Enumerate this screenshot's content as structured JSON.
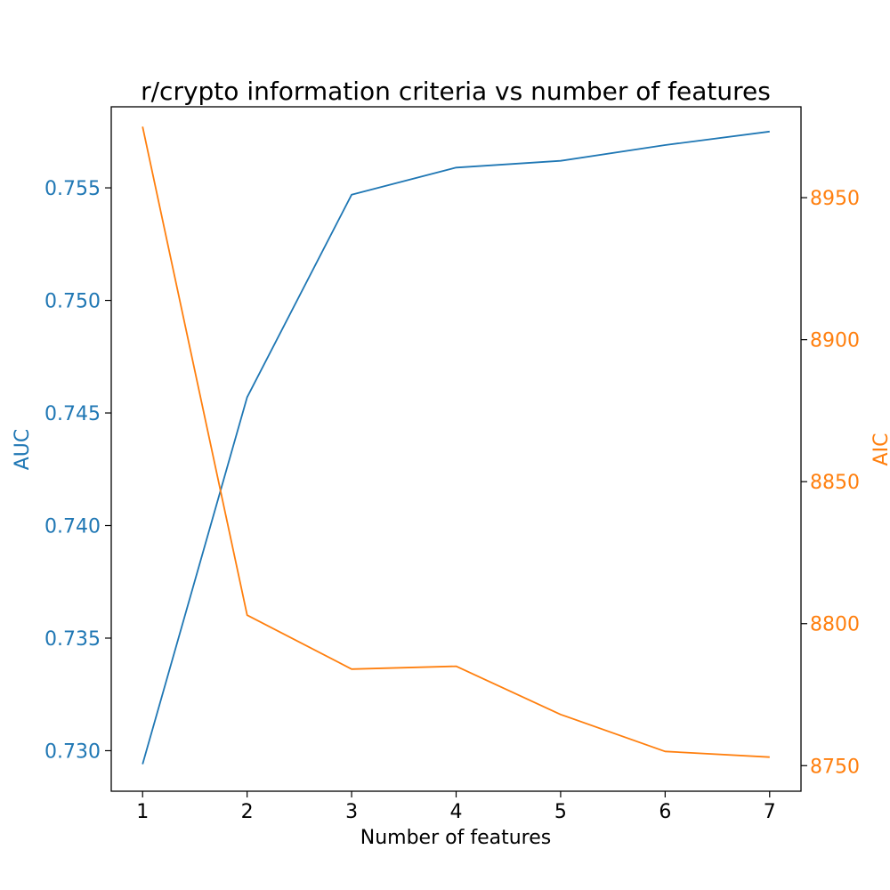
{
  "chart_data": {
    "type": "line",
    "title": "r/crypto information criteria vs number of features",
    "xlabel": "Number of features",
    "y1label": "AUC",
    "y2label": "AIC",
    "x": [
      1,
      2,
      3,
      4,
      5,
      6,
      7
    ],
    "xlim": [
      0.7,
      7.3
    ],
    "y1lim": [
      0.7282,
      0.7586
    ],
    "y2lim": [
      8741,
      8982
    ],
    "xticks": [
      1,
      2,
      3,
      4,
      5,
      6,
      7
    ],
    "y1ticks": [
      "0.730",
      "0.735",
      "0.740",
      "0.745",
      "0.750",
      "0.755"
    ],
    "y2ticks": [
      "8750",
      "8800",
      "8850",
      "8900",
      "8950"
    ],
    "series": [
      {
        "axis": "left",
        "color": "#1f77b4",
        "values": [
          0.7294,
          0.7457,
          0.7547,
          0.7559,
          0.7562,
          0.7569,
          0.7575
        ]
      },
      {
        "axis": "right",
        "color": "#ff7f0e",
        "values": [
          8975,
          8803,
          8784,
          8785,
          8768,
          8755,
          8753
        ]
      }
    ],
    "grid": false,
    "legend": "none"
  }
}
